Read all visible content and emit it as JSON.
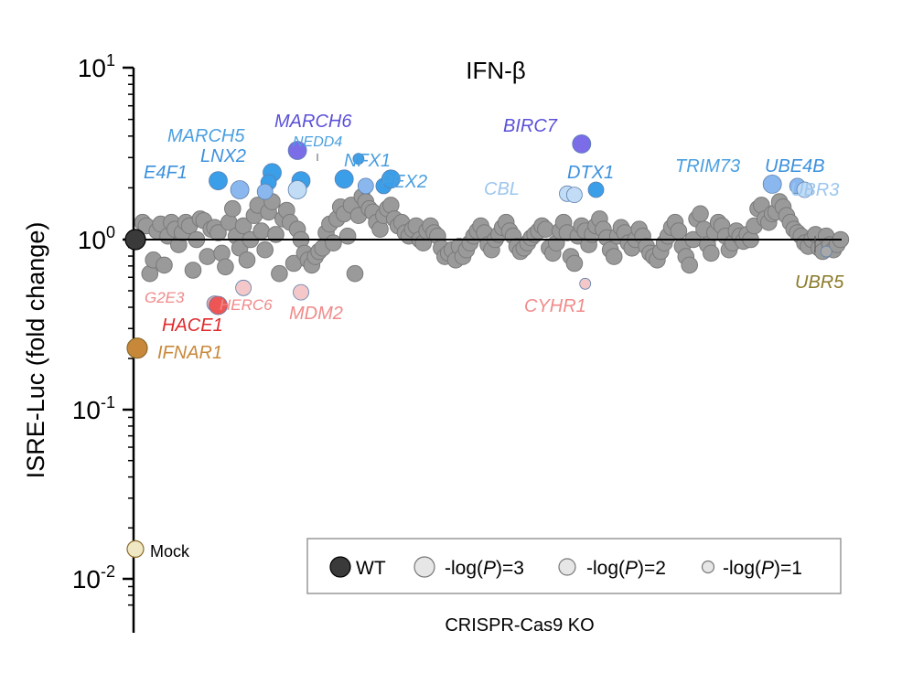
{
  "chart_data": {
    "type": "scatter",
    "title": "IFN-β",
    "xlabel": "CRISPR-Cas9 KO",
    "ylabel": "ISRE-Luc (fold change)",
    "yscale": "log",
    "ylim": [
      0.0055,
      10
    ],
    "yticks": [
      {
        "base": "10",
        "exp": "1",
        "value": 10
      },
      {
        "base": "10",
        "exp": "0",
        "value": 1
      },
      {
        "base": "10",
        "exp": "-1",
        "value": 0.1
      },
      {
        "base": "10",
        "exp": "-2",
        "value": 0.01
      }
    ],
    "reference_line": 1,
    "controls": [
      {
        "label": "WT",
        "rank": 0,
        "value": 1.0,
        "color": "#3a3a3a"
      },
      {
        "label": "IFNAR1",
        "rank": 0.1,
        "value": 0.23,
        "color": "#c8883a"
      },
      {
        "label": "Mock",
        "rank": 0,
        "value": 0.015,
        "color": "#f0e8c4"
      }
    ],
    "highlighted": [
      {
        "gene": "E4F1",
        "rank": 22,
        "value": 2.2,
        "pval": 3,
        "color": "#3b9ee8"
      },
      {
        "gene": "MARCH5",
        "rank": 28,
        "value": 1.95,
        "pval": 3,
        "color": "#8ab8ee"
      },
      {
        "gene": "LNX2",
        "rank": 37,
        "value": 2.45,
        "pval": 3,
        "color": "#3b9ee8"
      },
      {
        "gene": "LNX2",
        "rank": 36,
        "value": 2.15,
        "pval": 2,
        "color": "#3b9ee8"
      },
      {
        "gene": "LNX2",
        "rank": 35,
        "value": 1.9,
        "pval": 2,
        "color": "#8ab8ee"
      },
      {
        "gene": "LNX2",
        "rank": 45,
        "value": 2.2,
        "pval": 3,
        "color": "#3b9ee8"
      },
      {
        "gene": "LNX2",
        "rank": 44,
        "value": 1.95,
        "pval": 3,
        "color": "#c2dcf6"
      },
      {
        "gene": "MARCH6",
        "rank": 44,
        "value": 3.3,
        "pval": 3,
        "color": "#7b6ce8"
      },
      {
        "gene": "NEDD4",
        "rank": 61,
        "value": 2.95,
        "pval": 1,
        "color": "#3b9ee8"
      },
      {
        "gene": "NFX1",
        "rank": 57,
        "value": 2.25,
        "pval": 3,
        "color": "#3b9ee8"
      },
      {
        "gene": "NFX1",
        "rank": 63,
        "value": 2.05,
        "pval": 2,
        "color": "#8ab8ee"
      },
      {
        "gene": "NFX1",
        "rank": 68,
        "value": 2.05,
        "pval": 2,
        "color": "#3b9ee8"
      },
      {
        "gene": "PEX2",
        "rank": 70,
        "value": 2.25,
        "pval": 3,
        "color": "#3b9ee8"
      },
      {
        "gene": "BIRC7",
        "rank": 123,
        "value": 3.6,
        "pval": 3,
        "color": "#7b6ce8"
      },
      {
        "gene": "CBL",
        "rank": 119,
        "value": 1.85,
        "pval": 2,
        "color": "#c2dcf6"
      },
      {
        "gene": "CBL",
        "rank": 121,
        "value": 1.82,
        "pval": 2,
        "color": "#c2dcf6"
      },
      {
        "gene": "DTX1",
        "rank": 127,
        "value": 1.95,
        "pval": 2,
        "color": "#3b9ee8"
      },
      {
        "gene": "TRIM73",
        "rank": 176,
        "value": 2.1,
        "pval": 3,
        "color": "#8ab8ee"
      },
      {
        "gene": "UBE4B",
        "rank": 183,
        "value": 2.05,
        "pval": 2,
        "color": "#8ab8ee"
      },
      {
        "gene": "UBR3",
        "rank": 185,
        "value": 1.95,
        "pval": 2,
        "color": "#c2dcf6"
      },
      {
        "gene": "G2E3",
        "rank": 21,
        "value": 0.42,
        "pval": 2,
        "color": "#f2a8a8"
      },
      {
        "gene": "HACE1",
        "rank": 22,
        "value": 0.41,
        "pval": 3,
        "color": "#ee5555"
      },
      {
        "gene": "HERC6",
        "rank": 29,
        "value": 0.52,
        "pval": 2,
        "color": "#f4c8c8"
      },
      {
        "gene": "MDM2",
        "rank": 45,
        "value": 0.49,
        "pval": 2,
        "color": "#f4c8c8"
      },
      {
        "gene": "CYHR1",
        "rank": 124,
        "value": 0.55,
        "pval": 1,
        "color": "#f4c8c8"
      },
      {
        "gene": "UBR5",
        "rank": 191,
        "value": 0.85,
        "pval": 1,
        "color": "#a8a8a8"
      }
    ],
    "labels": [
      {
        "text": "MARCH5",
        "color": "#4a9fe0",
        "size": 20
      },
      {
        "text": "MARCH6",
        "color": "#5a50d8",
        "size": 20
      },
      {
        "text": "LNX2",
        "color": "#3b90dd",
        "size": 20
      },
      {
        "text": "NEDD4",
        "color": "#4a9fe0",
        "size": 16
      },
      {
        "text": "NFX1",
        "color": "#4a9fe0",
        "size": 20
      },
      {
        "text": "E4F1",
        "color": "#3b90dd",
        "size": 20
      },
      {
        "text": "PEX2",
        "color": "#4a9fe0",
        "size": 20
      },
      {
        "text": "BIRC7",
        "color": "#5a50d8",
        "size": 20
      },
      {
        "text": "CBL",
        "color": "#9cc6ef",
        "size": 20
      },
      {
        "text": "DTX1",
        "color": "#3b90dd",
        "size": 20
      },
      {
        "text": "TRIM73",
        "color": "#4a9fe0",
        "size": 20
      },
      {
        "text": "UBE4B",
        "color": "#3b90dd",
        "size": 20
      },
      {
        "text": "UBR3",
        "color": "#9cc6ef",
        "size": 20
      },
      {
        "text": "UBR5",
        "color": "#8a7a28",
        "size": 20
      },
      {
        "text": "G2E3",
        "color": "#f08a8a",
        "size": 17
      },
      {
        "text": "HERC6",
        "color": "#f08a8a",
        "size": 17
      },
      {
        "text": "HACE1",
        "color": "#e02a2a",
        "size": 20
      },
      {
        "text": "MDM2",
        "color": "#f08a8a",
        "size": 20
      },
      {
        "text": "CYHR1",
        "color": "#f08a8a",
        "size": 20
      },
      {
        "text": "IFNAR1",
        "color": "#c8883a",
        "size": 20
      },
      {
        "text": "Mock",
        "color": "#000000",
        "size": 18
      }
    ],
    "background_series": {
      "name": "",
      "color": "#9a9a9a",
      "n": 195,
      "note_values": "sampled log10 fold change per KO, ranked order",
      "log10_values": [
        0.1,
        0.08,
        -0.2,
        -0.12,
        0.05,
        0.09,
        -0.15,
        0.02,
        0.1,
        0.06,
        -0.03,
        0.04,
        0.1,
        0.08,
        -0.18,
        0.0,
        0.12,
        0.11,
        -0.1,
        0.06,
        0.07,
        0.04,
        -0.08,
        -0.16,
        0.1,
        0.18,
        0.02,
        -0.05,
        0.08,
        -0.12,
        0.0,
        0.14,
        0.2,
        0.05,
        -0.06,
        0.16,
        0.22,
        0.03,
        -0.2,
        0.12,
        0.17,
        0.1,
        -0.14,
        0.06,
        0.0,
        -0.08,
        -0.12,
        -0.15,
        -0.1,
        -0.07,
        -0.05,
        0.04,
        0.09,
        -0.02,
        0.12,
        0.19,
        0.15,
        0.02,
        0.2,
        -0.2,
        0.14,
        0.25,
        0.22,
        0.18,
        0.16,
        0.1,
        0.06,
        0.14,
        0.18,
        0.2,
        0.12,
        0.08,
        0.1,
        0.04,
        0.02,
        0.06,
        0.08,
        0.0,
        -0.02,
        0.05,
        0.08,
        0.04,
        0.02,
        -0.05,
        -0.1,
        -0.08,
        -0.06,
        -0.12,
        -0.04,
        -0.1,
        -0.06,
        -0.02,
        0.02,
        0.05,
        0.08,
        0.04,
        -0.03,
        -0.06,
        0.0,
        0.03,
        0.07,
        0.1,
        0.05,
        0.02,
        -0.04,
        -0.07,
        -0.05,
        -0.02,
        0.01,
        0.03,
        0.05,
        0.08,
        0.06,
        -0.05,
        -0.08,
        -0.02,
        0.05,
        0.1,
        0.04,
        -0.1,
        -0.14,
        0.02,
        0.08,
        0.05,
        -0.03,
        0.03,
        0.08,
        0.12,
        0.06,
        0.01,
        -0.06,
        -0.1,
        0.02,
        0.07,
        0.04,
        -0.02,
        -0.05,
        0.0,
        0.06,
        0.02,
        -0.04,
        -0.08,
        -0.1,
        -0.12,
        -0.07,
        -0.02,
        0.02,
        0.07,
        0.1,
        0.05,
        -0.04,
        -0.1,
        -0.15,
        0.0,
        0.12,
        0.15,
        0.06,
        -0.03,
        -0.08,
        0.04,
        0.1,
        0.08,
        0.02,
        -0.06,
        -0.02,
        0.05,
        0.02,
        -0.01,
        0.03,
        0.0,
        0.08,
        0.18,
        0.2,
        0.12,
        0.1,
        0.15,
        0.16,
        0.22,
        0.19,
        0.14,
        0.1,
        0.06,
        0.04,
        0.02,
        -0.02,
        -0.04,
        0.0,
        0.03,
        -0.05,
        -0.07,
        0.02,
        -0.03,
        -0.06,
        -0.03,
        0.0
      ]
    },
    "legend": {
      "placement": "bottom-right",
      "entries": [
        {
          "label": "WT",
          "kind": "filled",
          "color": "#3a3a3a"
        },
        {
          "label_pre": "-log(",
          "label_italic": "P",
          "label_post": ")=3",
          "kind": "size",
          "r": 11
        },
        {
          "label_pre": "-log(",
          "label_italic": "P",
          "label_post": ")=2",
          "kind": "size",
          "r": 9
        },
        {
          "label_pre": "-log(",
          "label_italic": "P",
          "label_post": ")=1",
          "kind": "size",
          "r": 6.5
        }
      ]
    }
  }
}
